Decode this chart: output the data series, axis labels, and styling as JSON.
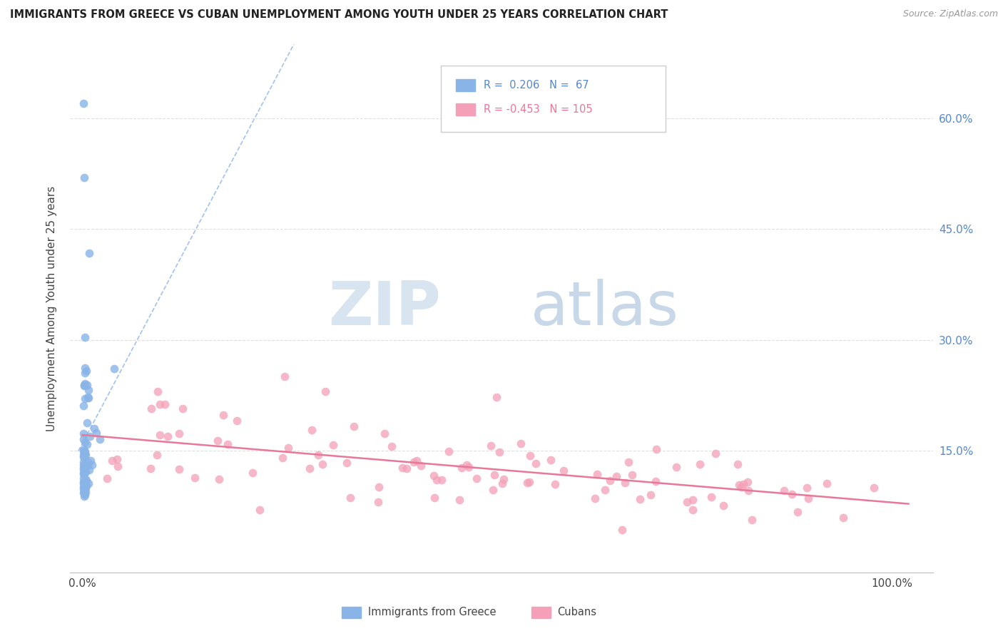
{
  "title": "IMMIGRANTS FROM GREECE VS CUBAN UNEMPLOYMENT AMONG YOUTH UNDER 25 YEARS CORRELATION CHART",
  "source": "Source: ZipAtlas.com",
  "ylabel": "Unemployment Among Youth under 25 years",
  "color_blue": "#89B4E8",
  "color_blue_line": "#89B4E8",
  "color_pink": "#F4A0B8",
  "color_pink_line": "#E8789A",
  "color_tick_blue": "#5588CC",
  "watermark_zip_color": "#D8E4F0",
  "watermark_atlas_color": "#C8D8E8",
  "ytick_vals": [
    0.0,
    0.15,
    0.3,
    0.45,
    0.6
  ],
  "ytick_labels_right": [
    "",
    "15.0%",
    "30.0%",
    "45.0%",
    "60.0%"
  ],
  "grid_color": "#E0E0E0",
  "legend_r1": "R =  0.206",
  "legend_n1": "N =  67",
  "legend_r2": "R = -0.453",
  "legend_n2": "N = 105"
}
